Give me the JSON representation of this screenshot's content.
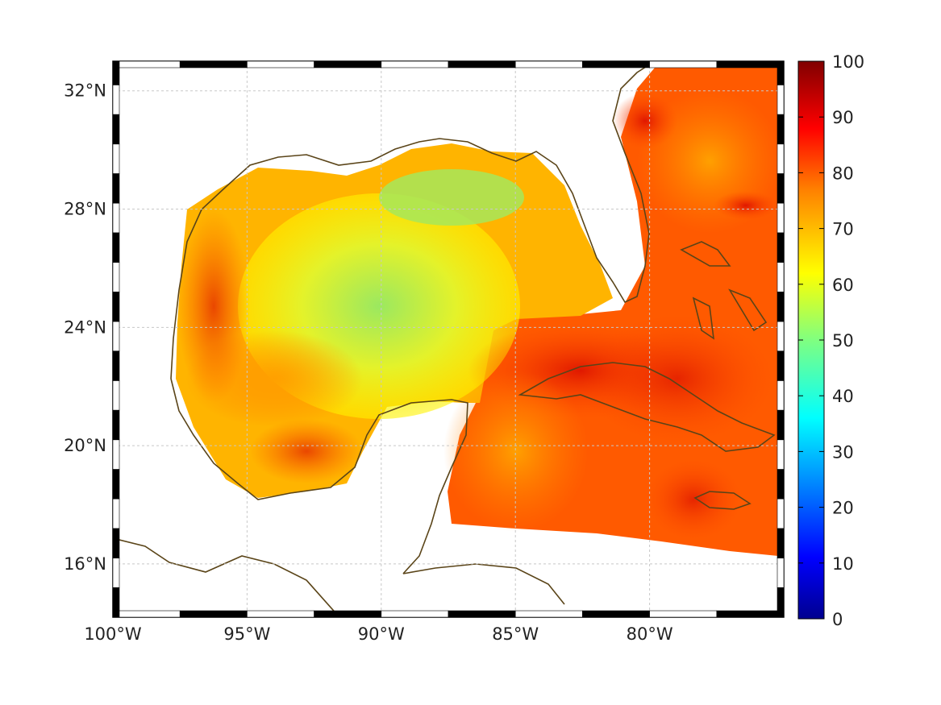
{
  "map": {
    "x_axis": {
      "ticks": [
        {
          "value": -100,
          "label": "100°W"
        },
        {
          "value": -95,
          "label": "95°W"
        },
        {
          "value": -90,
          "label": "90°W"
        },
        {
          "value": -85,
          "label": "85°W"
        },
        {
          "value": -80,
          "label": "80°W"
        }
      ],
      "range": [
        -100,
        -75
      ]
    },
    "y_axis": {
      "ticks": [
        {
          "value": 16,
          "label": "16°N"
        },
        {
          "value": 20,
          "label": "20°N"
        },
        {
          "value": 24,
          "label": "24°N"
        },
        {
          "value": 28,
          "label": "28°N"
        },
        {
          "value": 32,
          "label": "32°N"
        }
      ],
      "range": [
        14.2,
        33
      ]
    },
    "grid": true,
    "frame": "black-and-white checkered border",
    "colors": {
      "coastline": "#5a4418",
      "grid": "#c8c8c8"
    }
  },
  "colorbar": {
    "colormap": "jet",
    "range": [
      0,
      100
    ],
    "ticks": [
      "0",
      "10",
      "20",
      "30",
      "40",
      "50",
      "60",
      "70",
      "80",
      "90",
      "100"
    ],
    "colors": [
      "#00008f",
      "#0000ff",
      "#0080ff",
      "#00ffff",
      "#80ff80",
      "#ffff00",
      "#ff8000",
      "#ff0000",
      "#800000"
    ]
  }
}
